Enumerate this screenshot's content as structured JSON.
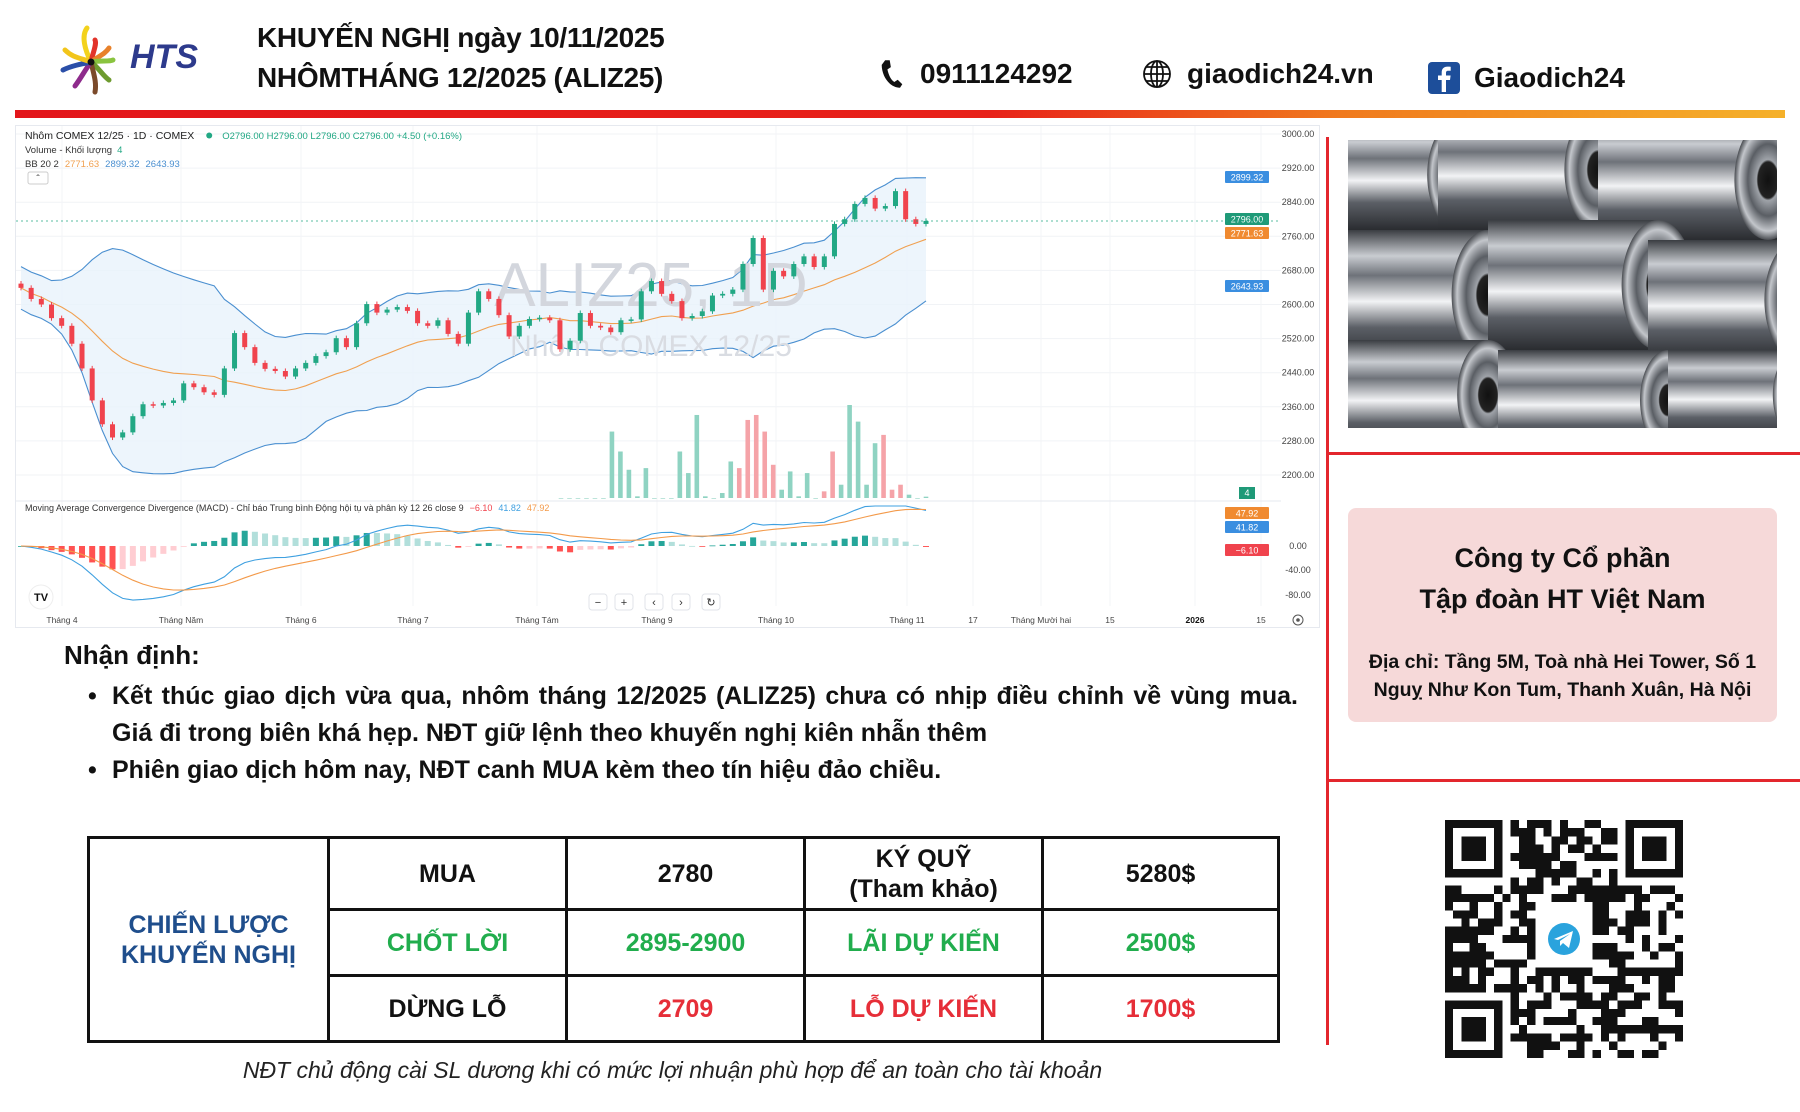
{
  "header": {
    "logo_text": "HTS",
    "title_line1": "KHUYẾN NGHỊ ngày 10/11/2025",
    "title_line2": "NHÔMTHÁNG 12/2025 (ALIZ25)",
    "phone": "0911124292",
    "website": "giaodich24.vn",
    "facebook": "Giaodich24",
    "icons": [
      "phone-icon",
      "globe-icon",
      "facebook-icon"
    ]
  },
  "chart": {
    "symbol_line": "Nhôm COMEX 12/25 · 1D · COMEX",
    "ohlc": "O2796.00 H2796.00 L2796.00 C2796.00 +4.50 (+0.16%)",
    "volume_label": "Volume - Khối lượng",
    "volume_value": "4",
    "bb_label": "BB 20 2",
    "bb_mid": "2771.63",
    "bb_upper": "2899.32",
    "bb_lower": "2643.93",
    "watermark_1": "ALIZ25, 1D",
    "watermark_2": "Nhôm COMEX 12/25",
    "macd_label": "Moving Average Convergence Divergence (MACD) - Chỉ báo Trung bình Động hội tụ và phân kỳ 12 26 close 9",
    "macd_hist": "−6.10",
    "macd_line": "41.82",
    "macd_signal": "47.92",
    "last_price": "2796.00",
    "price_ticks": [
      "3000.00",
      "2920.00",
      "2840.00",
      "2760.00",
      "2680.00",
      "2600.00",
      "2520.00",
      "2440.00",
      "2360.00",
      "2280.00",
      "2200.00"
    ],
    "macd_ticks": [
      "0.00",
      "-40.00",
      "-80.00"
    ],
    "x_ticks": [
      "Tháng 4",
      "Tháng Năm",
      "Tháng 6",
      "Tháng 7",
      "Tháng Tám",
      "Tháng 9",
      "Tháng 10",
      "Tháng 11",
      "17",
      "Tháng Mười hai",
      "15",
      "2026",
      "15"
    ],
    "nav_buttons": [
      "−",
      "+",
      "‹",
      "›",
      "↻"
    ],
    "colors": {
      "up": "#22a884",
      "down": "#f0434d",
      "bb_band": "#4a8fd0",
      "bb_mid": "#f0a050",
      "macd": "#3fa0e0",
      "signal": "#f39a4a"
    }
  },
  "chart_data": {
    "type": "candlestick",
    "ylim": [
      2200,
      3000
    ],
    "closes": [
      2639,
      2613,
      2600,
      2568,
      2550,
      2508,
      2450,
      2375,
      2319,
      2288,
      2300,
      2338,
      2366,
      2363,
      2369,
      2375,
      2415,
      2406,
      2394,
      2388,
      2450,
      2533,
      2500,
      2463,
      2449,
      2444,
      2431,
      2450,
      2463,
      2479,
      2488,
      2521,
      2500,
      2556,
      2601,
      2581,
      2588,
      2594,
      2585,
      2556,
      2550,
      2563,
      2531,
      2508,
      2581,
      2631,
      2613,
      2575,
      2525,
      2550,
      2566,
      2569,
      2563,
      2495,
      2515,
      2580,
      2550,
      2546,
      2535,
      2563,
      2565,
      2631,
      2655,
      2625,
      2608,
      2568,
      2573,
      2584,
      2621,
      2625,
      2635,
      2695,
      2756,
      2635,
      2679,
      2666,
      2695,
      2713,
      2688,
      2713,
      2789,
      2800,
      2836,
      2850,
      2825,
      2831,
      2866,
      2800,
      2789,
      2796
    ],
    "volumes_recent": [
      0,
      0,
      0,
      0,
      0,
      0,
      200,
      140,
      85,
      5,
      90,
      0,
      0,
      0,
      140,
      75,
      250,
      5,
      0,
      15,
      110,
      90,
      235,
      250,
      200,
      100,
      25,
      80,
      5,
      75,
      0,
      20,
      140,
      40,
      280,
      230,
      40,
      165,
      190,
      25,
      40,
      10,
      0,
      4
    ],
    "volumes_recent_up": [
      1,
      1,
      1,
      1,
      1,
      1,
      1,
      1,
      1,
      1,
      1,
      1,
      1,
      1,
      1,
      1,
      1,
      1,
      1,
      1,
      1,
      0,
      0,
      0,
      0,
      0,
      1,
      1,
      1,
      1,
      1,
      0,
      0,
      1,
      1,
      1,
      1,
      1,
      0,
      0,
      0,
      1,
      1,
      1
    ]
  },
  "side": {
    "company_line1": "Công ty Cổ phần",
    "company_line2": "Tập đoàn HT Việt Nam",
    "address_line1": "Địa chỉ: Tầng 5M, Toà nhà Hei Tower, Số 1",
    "address_line2": "Nguỵ Như Kon Tum, Thanh Xuân, Hà Nội"
  },
  "assessment": {
    "heading": "Nhận định:",
    "bullets": [
      "Kết thúc giao dịch vừa qua, nhôm tháng 12/2025 (ALIZ25) chưa có nhịp điều chỉnh về vùng mua. Giá đi trong biên khá hẹp. NĐT giữ lệnh theo khuyến nghị kiên nhẫn thêm",
      "Phiên giao dịch hôm nay, NĐT canh MUA kèm theo tín hiệu đảo chiều."
    ]
  },
  "strategy": {
    "label_line1": "CHIẾN LƯỢC",
    "label_line2": "KHUYẾN NGHỊ",
    "buy_label": "MUA",
    "buy_price": "2780",
    "margin_label_1": "KÝ QUỸ",
    "margin_label_2": "(Tham khảo)",
    "margin_value": "5280$",
    "tp_label": "CHỐT LỜI",
    "tp_price": "2895-2900",
    "profit_label": "LÃI DỰ KIẾN",
    "profit_value": "2500$",
    "sl_label": "DỪNG LỖ",
    "sl_price": "2709",
    "loss_label": "LỖ DỰ KIẾN",
    "loss_value": "1700$"
  },
  "footnote": "NĐT chủ động cài SL dương khi có mức lợi nhuận phù hợp để an toàn cho tài khoản"
}
